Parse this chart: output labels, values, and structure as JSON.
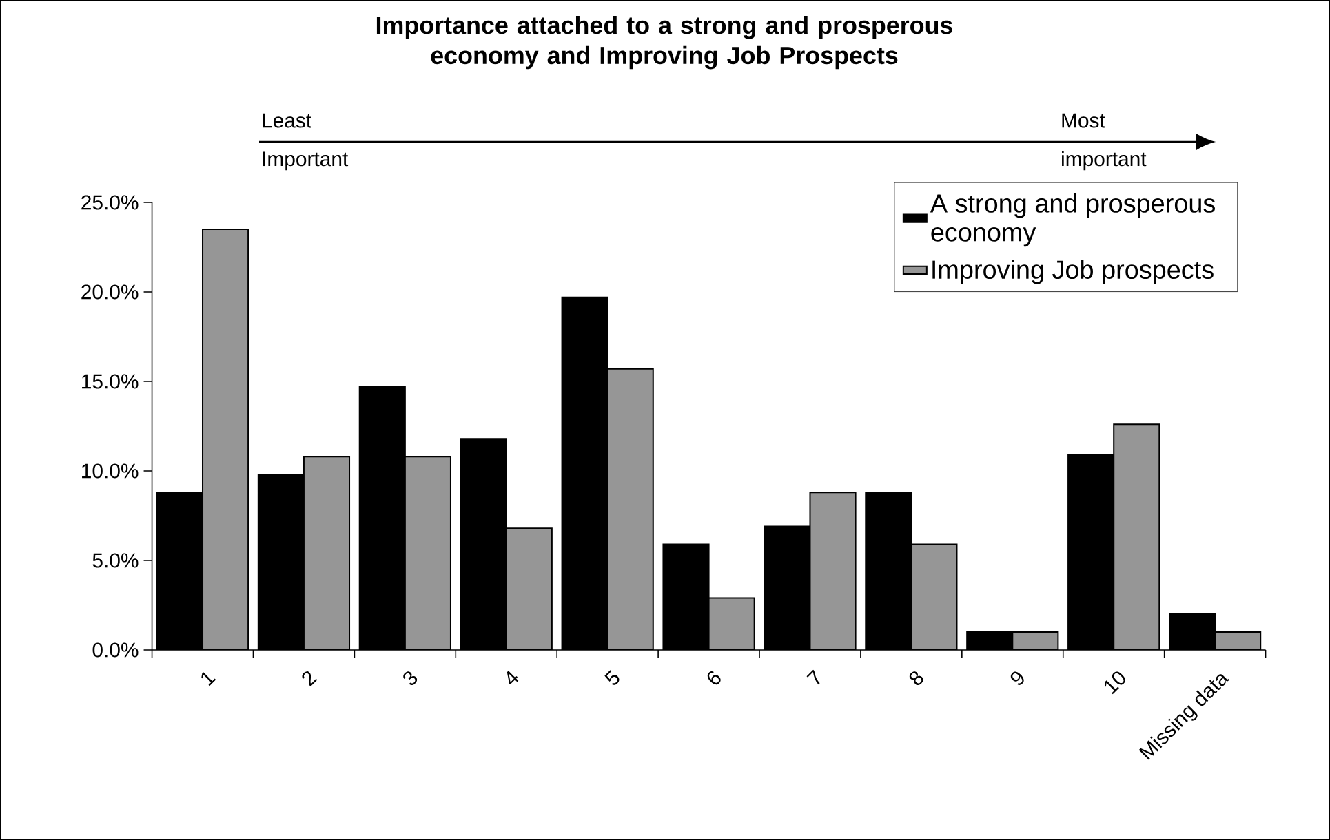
{
  "chart_data": {
    "type": "bar",
    "title": "Importance attached to a strong and prosperous economy and Improving Job Prospects",
    "annotations": [
      "Least Important",
      "Most important"
    ],
    "categories": [
      "1",
      "2",
      "3",
      "4",
      "5",
      "6",
      "7",
      "8",
      "9",
      "10",
      "Missing data"
    ],
    "series": [
      {
        "name": "A strong and prosperous economy",
        "color": "#000000",
        "values": [
          8.8,
          9.8,
          14.7,
          11.8,
          19.7,
          5.9,
          6.9,
          8.8,
          1.0,
          10.9,
          2.0
        ]
      },
      {
        "name": "Improving Job prospects",
        "color": "#969696",
        "values": [
          23.5,
          10.8,
          10.8,
          6.8,
          15.7,
          2.9,
          8.8,
          5.9,
          1.0,
          12.6,
          1.0
        ]
      }
    ],
    "ylim": [
      0,
      25
    ],
    "yticks": [
      {
        "value": 0,
        "label": "0.0%"
      },
      {
        "value": 5,
        "label": "5.0%"
      },
      {
        "value": 10,
        "label": "10.0%"
      },
      {
        "value": 15,
        "label": "15.0%"
      },
      {
        "value": 20,
        "label": "20.0%"
      },
      {
        "value": 25,
        "label": "25.0%"
      }
    ],
    "legend": "top right"
  }
}
